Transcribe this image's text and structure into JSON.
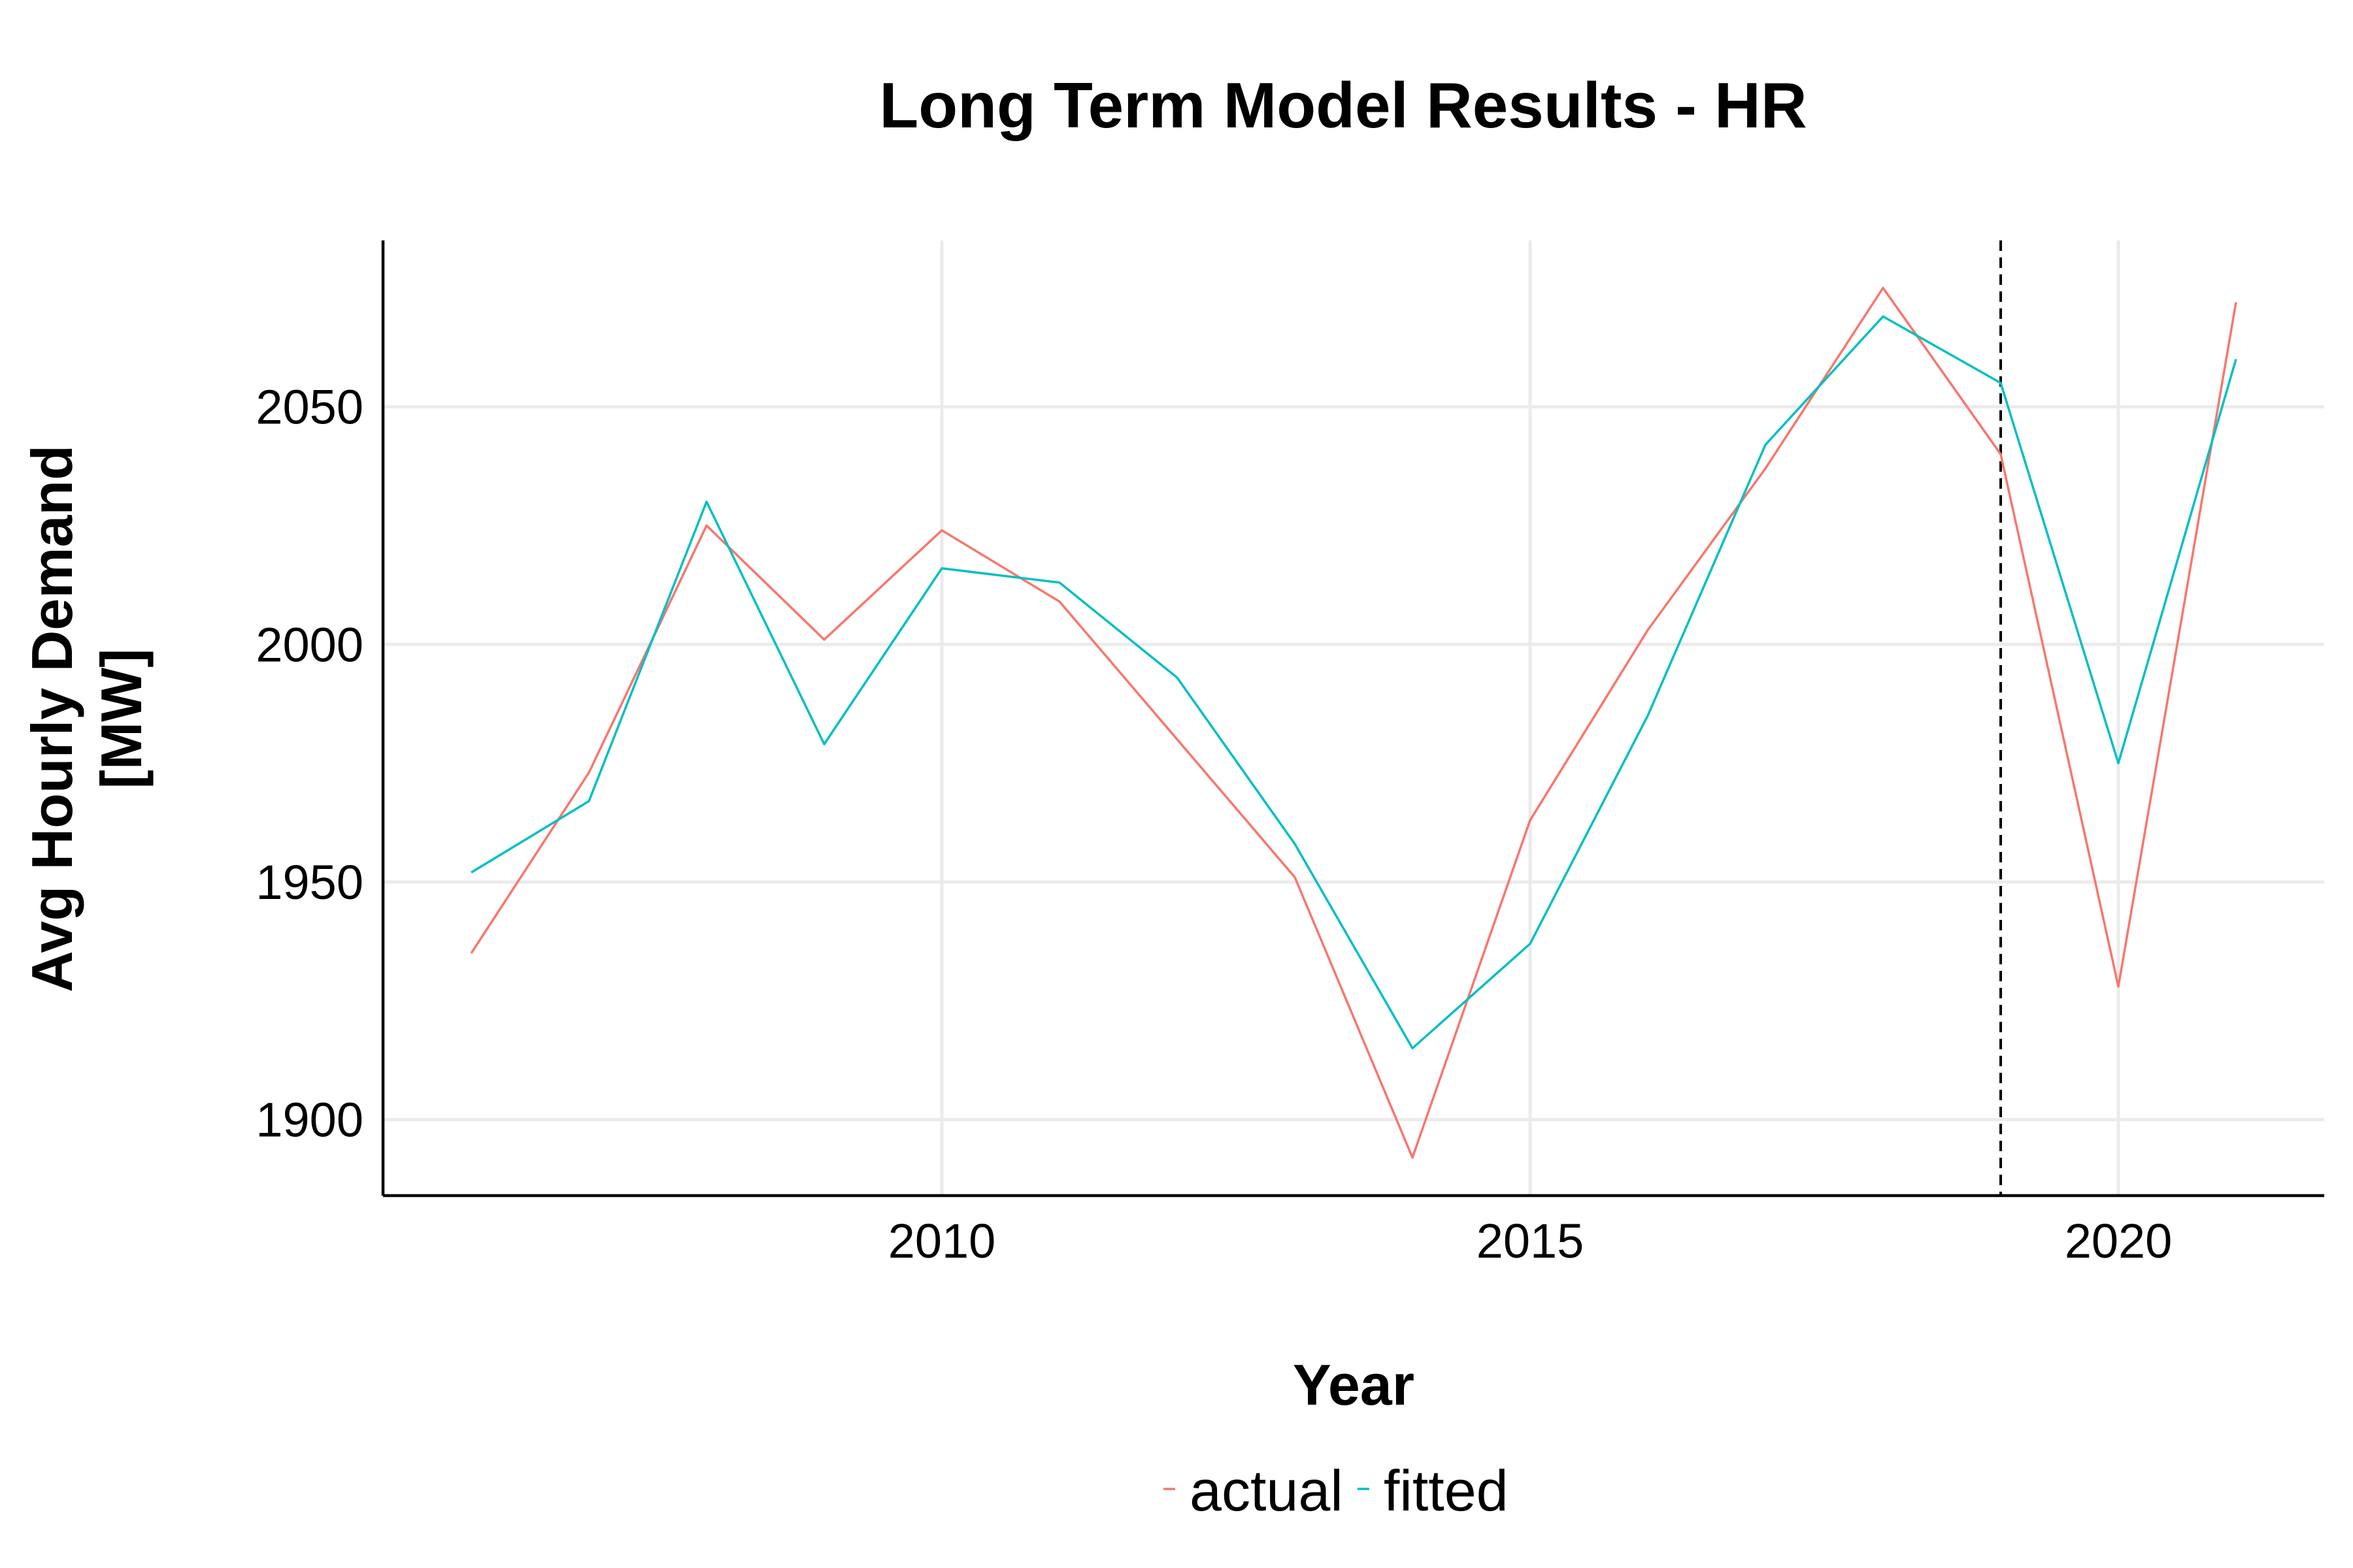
{
  "chart_data": {
    "type": "line",
    "title": "Long Term Model Results - HR",
    "xlabel": "Year",
    "ylabel_lines": [
      "Avg Hourly Demand",
      "[MW]"
    ],
    "xlim": [
      2005.25,
      2021.75
    ],
    "ylim": [
      1884,
      2085
    ],
    "x_ticks": [
      2010,
      2015,
      2020
    ],
    "y_ticks": [
      1900,
      1950,
      2000,
      2050
    ],
    "grid": true,
    "legend_position": "bottom",
    "reference_line": {
      "x": 2019,
      "style": "dashed",
      "color": "#000000"
    },
    "x": [
      2006,
      2007,
      2008,
      2009,
      2010,
      2011,
      2012,
      2013,
      2014,
      2015,
      2016,
      2017,
      2018,
      2019,
      2020,
      2021
    ],
    "series": [
      {
        "name": "actual",
        "color": "#F8766D",
        "values": [
          1935,
          1973,
          2025,
          2001,
          2024,
          2009,
          1980,
          1951,
          1892,
          1963,
          2003,
          2037,
          2075,
          2040,
          1928,
          2072
        ]
      },
      {
        "name": "fitted",
        "color": "#00BFC4",
        "values": [
          1952,
          1967,
          2030,
          1979,
          2016,
          2013,
          1993,
          1958,
          1915,
          1937,
          1985,
          2042,
          2069,
          2055,
          1975,
          2060
        ]
      }
    ]
  }
}
